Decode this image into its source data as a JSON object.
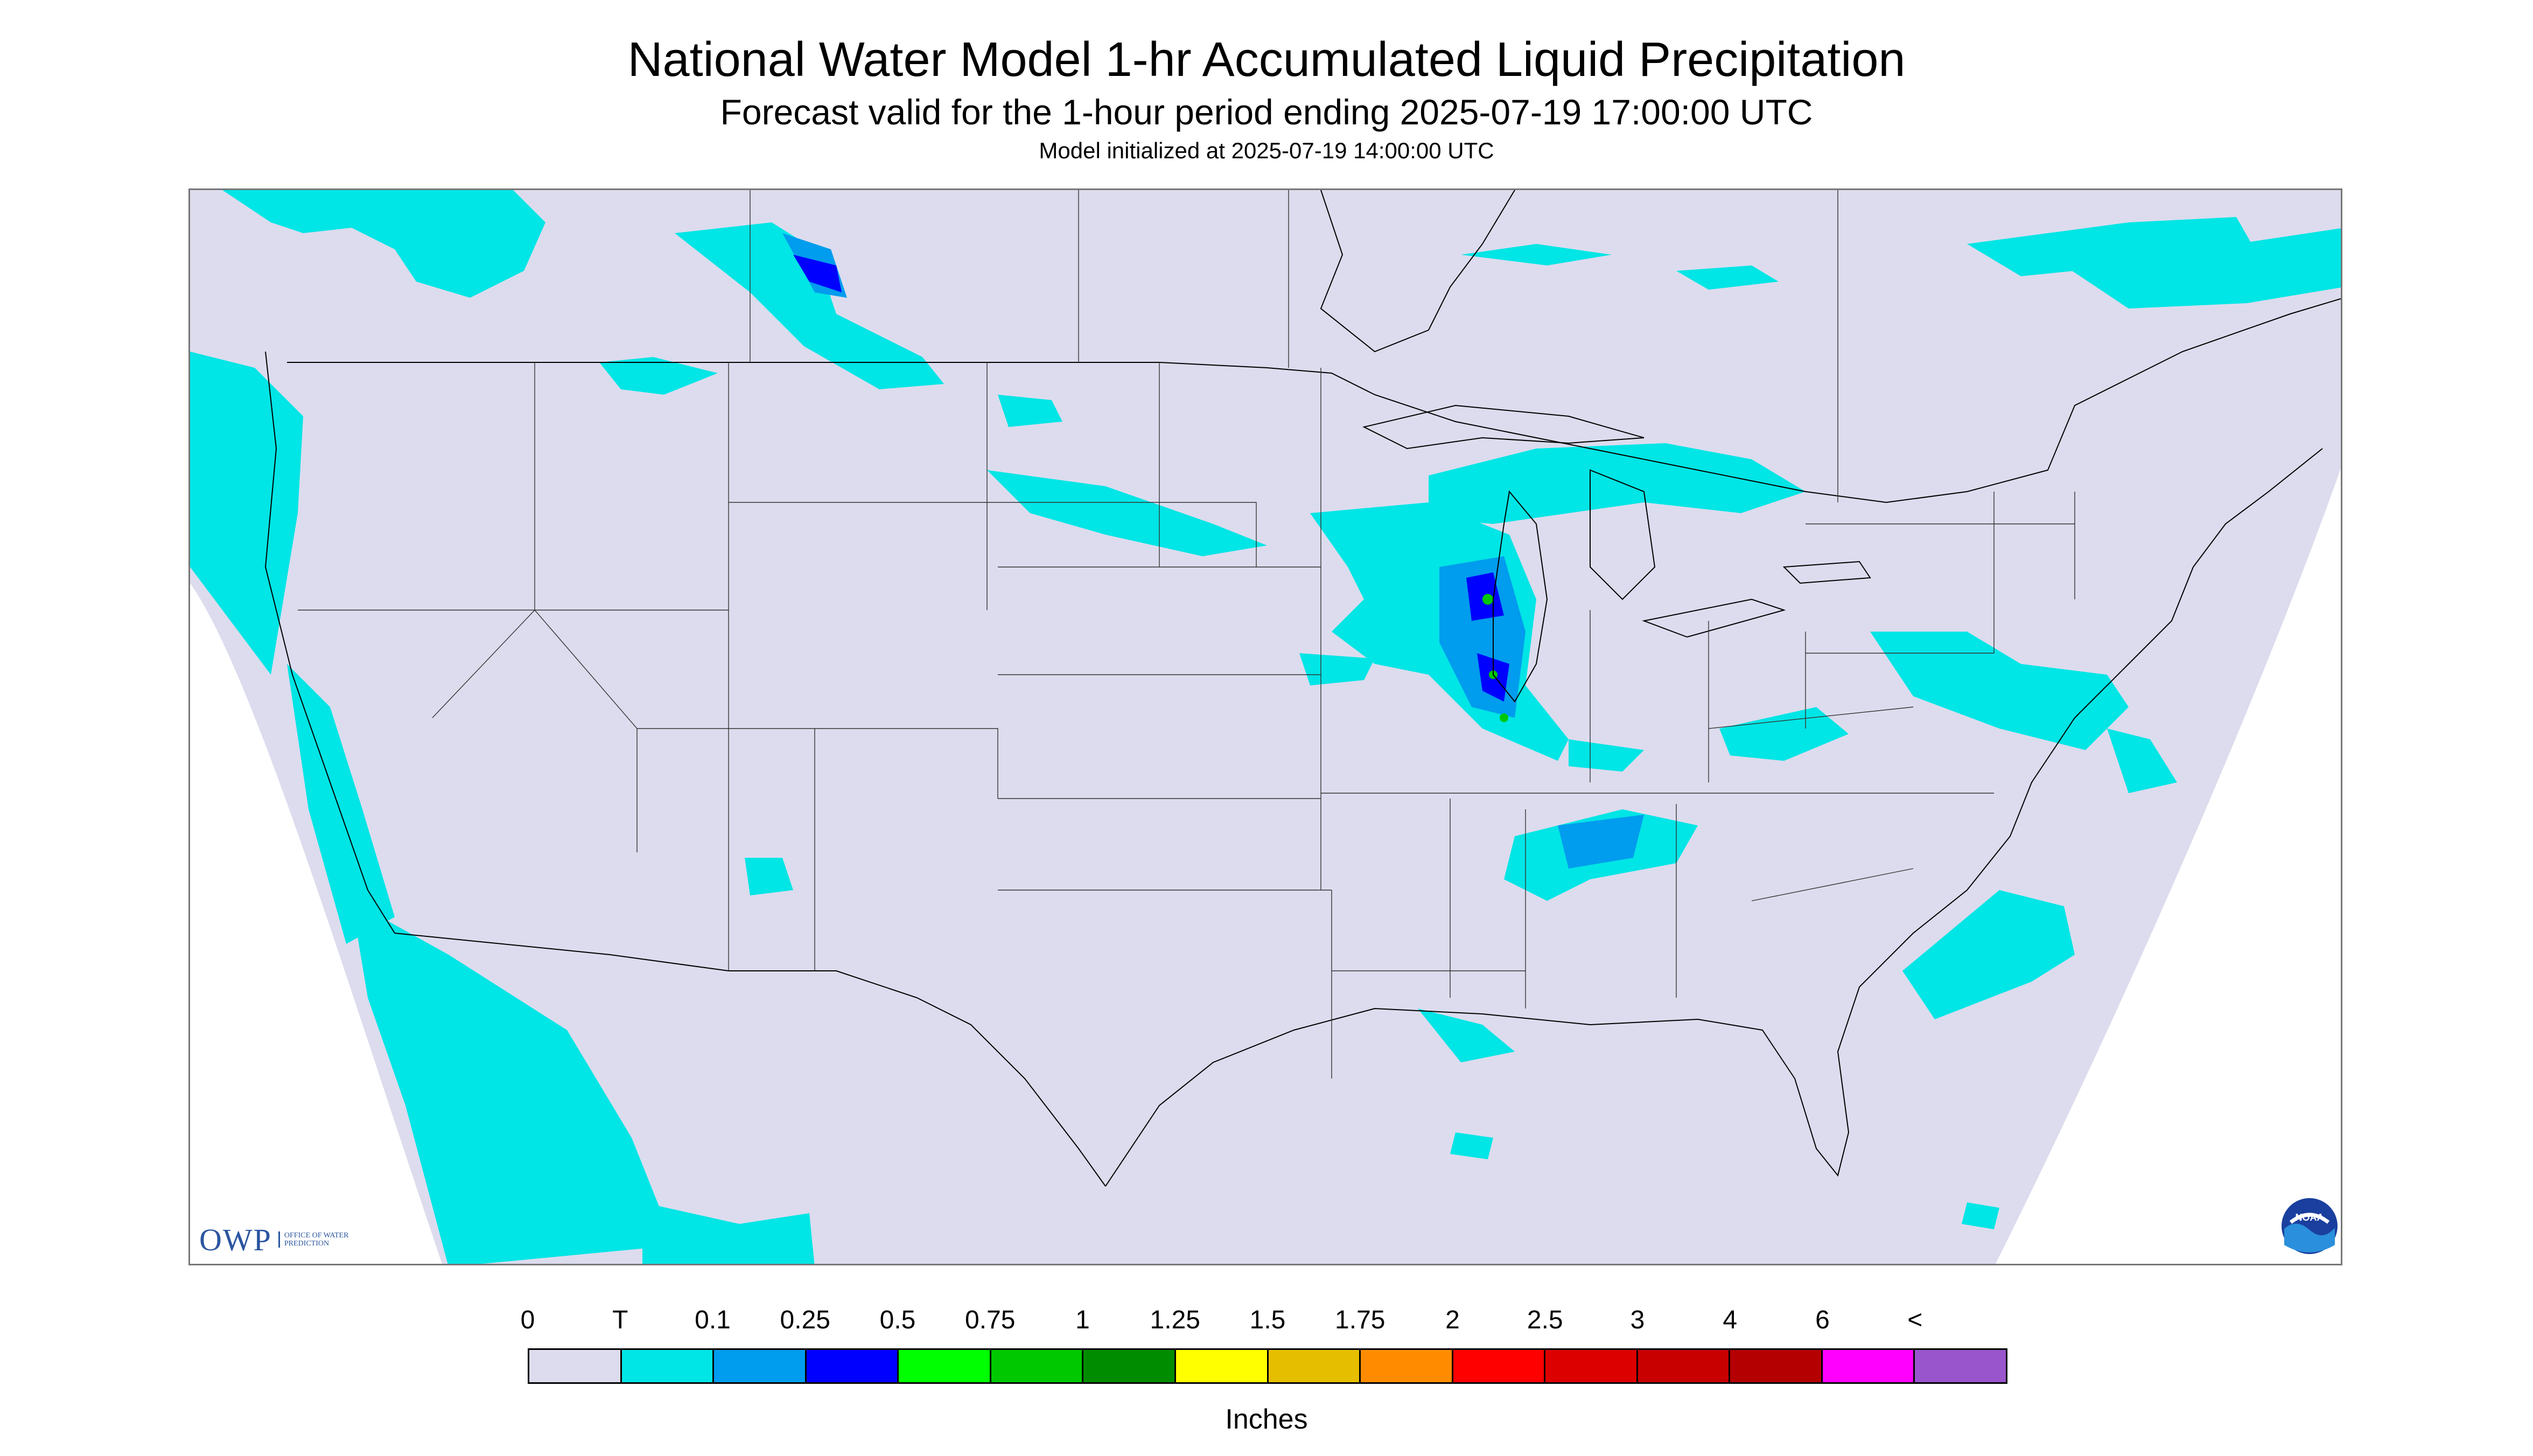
{
  "header": {
    "title": "National Water Model 1-hr Accumulated Liquid Precipitation",
    "subtitle": "Forecast valid for the 1-hour period ending 2025-07-19 17:00:00 UTC",
    "init": "Model initialized at 2025-07-19 14:00:00 UTC"
  },
  "map": {
    "background_color": "#dcdcee",
    "boundary_color": "#000000",
    "precip_color": "#00e5e5"
  },
  "legend": {
    "labels": [
      "0",
      "T",
      "0.1",
      "0.25",
      "0.5",
      "0.75",
      "1",
      "1.25",
      "1.5",
      "1.75",
      "2",
      "2.5",
      "3",
      "4",
      "6",
      "<"
    ],
    "colors": [
      "#dcdcee",
      "#00e5e5",
      "#009cee",
      "#0000ff",
      "#00ff00",
      "#00c800",
      "#008c00",
      "#ffff00",
      "#e6be00",
      "#ff8c00",
      "#ff0000",
      "#dc0000",
      "#c80000",
      "#b40000",
      "#ff00ff",
      "#9955cc"
    ],
    "units": "Inches"
  },
  "logos": {
    "owp_letters": "OWP",
    "owp_text": "OFFICE OF WATER PREDICTION",
    "noaa_text": "NOAA"
  }
}
